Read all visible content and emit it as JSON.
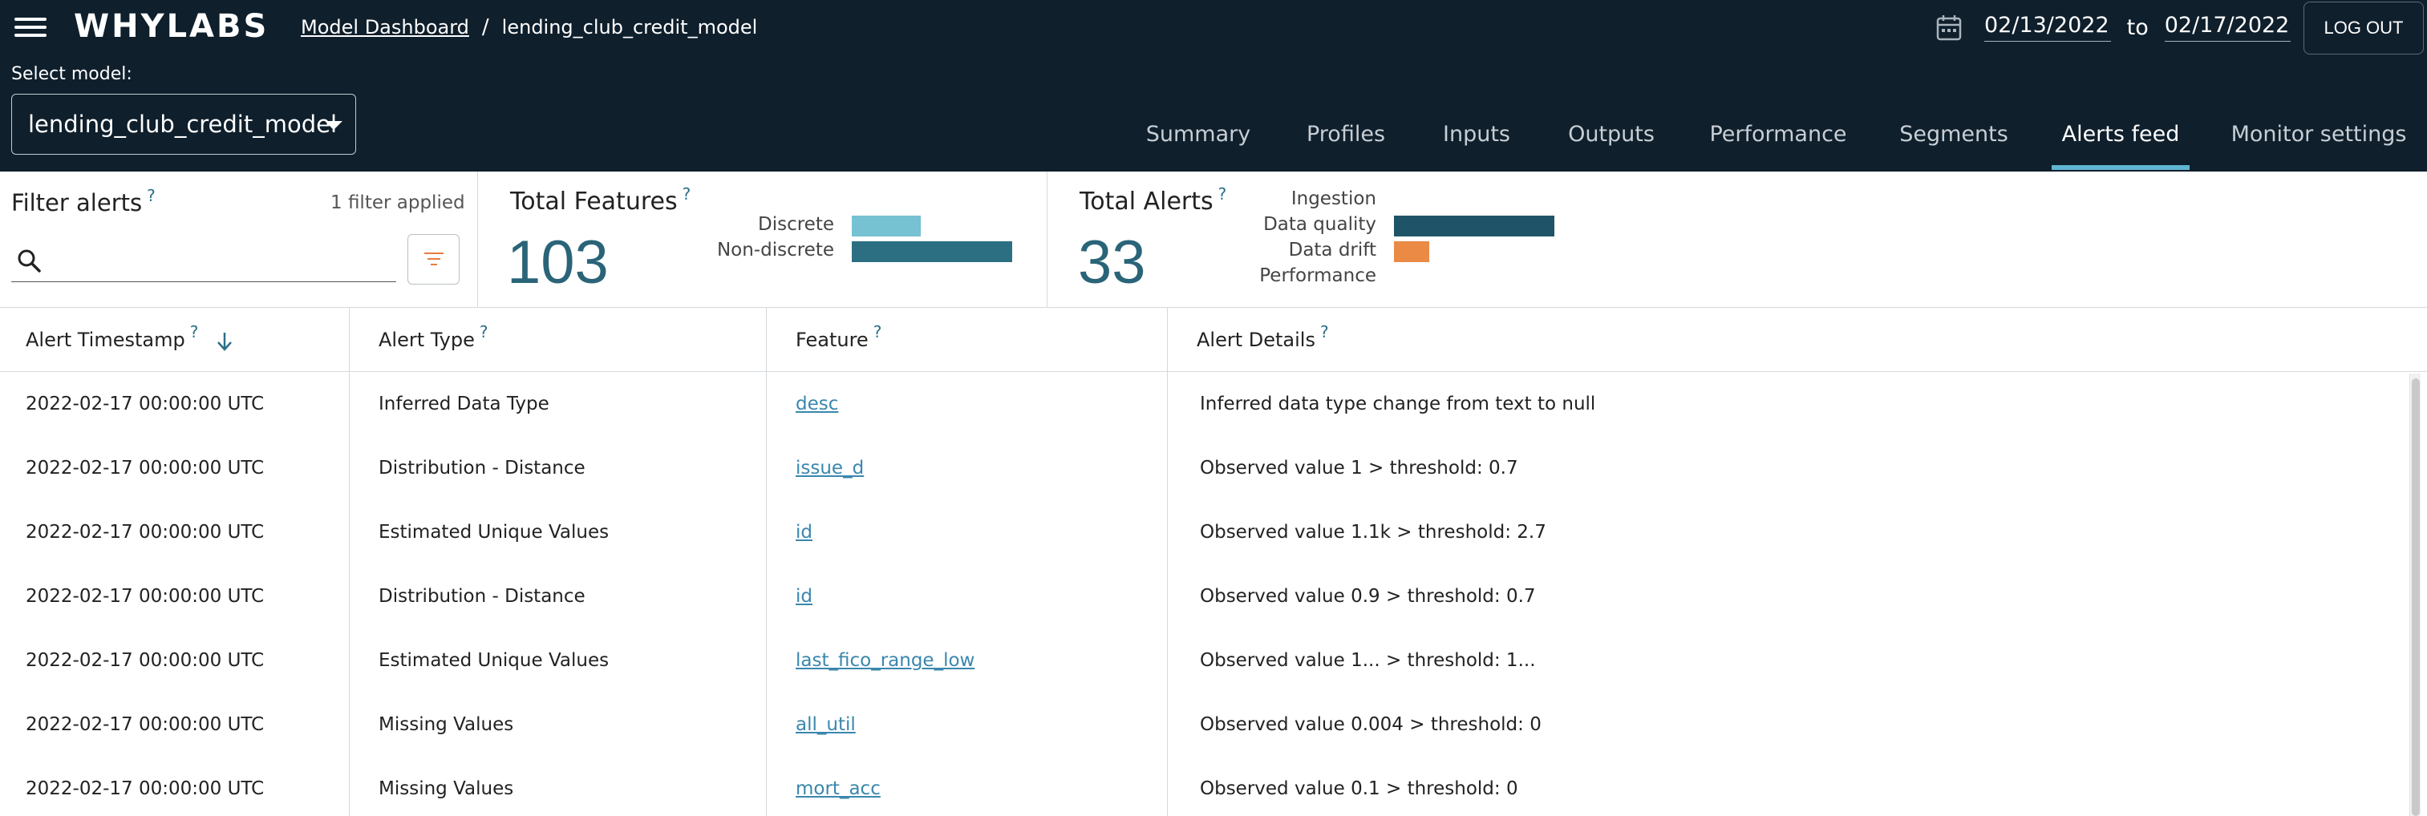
{
  "header": {
    "logo": "WHYLABS",
    "breadcrumb": {
      "link": "Model Dashboard",
      "separator": "/",
      "current": "lending_club_credit_model"
    },
    "date_from": "02/13/2022",
    "date_to_label": "to",
    "date_to": "02/17/2022",
    "logout_label": "LOG OUT",
    "select_label": "Select model:",
    "selected_model": "lending_club_credit_model"
  },
  "tabs": [
    "Summary",
    "Profiles",
    "Inputs",
    "Outputs",
    "Performance",
    "Segments",
    "Alerts feed",
    "Monitor settings"
  ],
  "active_tab": "Alerts feed",
  "filter": {
    "title": "Filter alerts",
    "help": "?",
    "applied_text": "1 filter applied",
    "search_value": "",
    "search_placeholder": ""
  },
  "features_summary": {
    "title": "Total Features",
    "help": "?",
    "count": "103",
    "bars": [
      {
        "label": "Discrete",
        "value": 31,
        "color": "#76c1d2"
      },
      {
        "label": "Non-discrete",
        "value": 72,
        "color": "#2c6f82"
      }
    ]
  },
  "alerts_summary": {
    "title": "Total Alerts",
    "help": "?",
    "count": "33",
    "bars": [
      {
        "label": "Ingestion",
        "value": 0,
        "color": "#1f5468"
      },
      {
        "label": "Data quality",
        "value": 27,
        "color": "#1f5468"
      },
      {
        "label": "Data drift",
        "value": 6,
        "color": "#ea8a45"
      },
      {
        "label": "Performance",
        "value": 0,
        "color": "#1f5468"
      }
    ]
  },
  "table": {
    "columns": [
      {
        "label": "Alert Timestamp",
        "help": "?"
      },
      {
        "label": "Alert Type",
        "help": "?"
      },
      {
        "label": "Feature",
        "help": "?"
      },
      {
        "label": "Alert Details",
        "help": "?"
      }
    ],
    "rows": [
      {
        "timestamp": "2022-02-17 00:00:00 UTC",
        "type": "Inferred Data Type",
        "feature": "desc",
        "details": "Inferred data type change from text to null"
      },
      {
        "timestamp": "2022-02-17 00:00:00 UTC",
        "type": "Distribution - Distance",
        "feature": "issue_d",
        "details": "Observed value 1 > threshold: 0.7"
      },
      {
        "timestamp": "2022-02-17 00:00:00 UTC",
        "type": "Estimated Unique Values",
        "feature": "id",
        "details": "Observed value 1.1k > threshold: 2.7"
      },
      {
        "timestamp": "2022-02-17 00:00:00 UTC",
        "type": "Distribution - Distance",
        "feature": "id",
        "details": "Observed value 0.9 > threshold: 0.7"
      },
      {
        "timestamp": "2022-02-17 00:00:00 UTC",
        "type": "Estimated Unique Values",
        "feature": "last_fico_range_low",
        "details": "Observed value 1... > threshold: 1..."
      },
      {
        "timestamp": "2022-02-17 00:00:00 UTC",
        "type": "Missing Values",
        "feature": "all_util",
        "details": "Observed value 0.004 > threshold: 0"
      },
      {
        "timestamp": "2022-02-17 00:00:00 UTC",
        "type": "Missing Values",
        "feature": "mort_acc",
        "details": "Observed value 0.1 > threshold: 0"
      }
    ]
  }
}
